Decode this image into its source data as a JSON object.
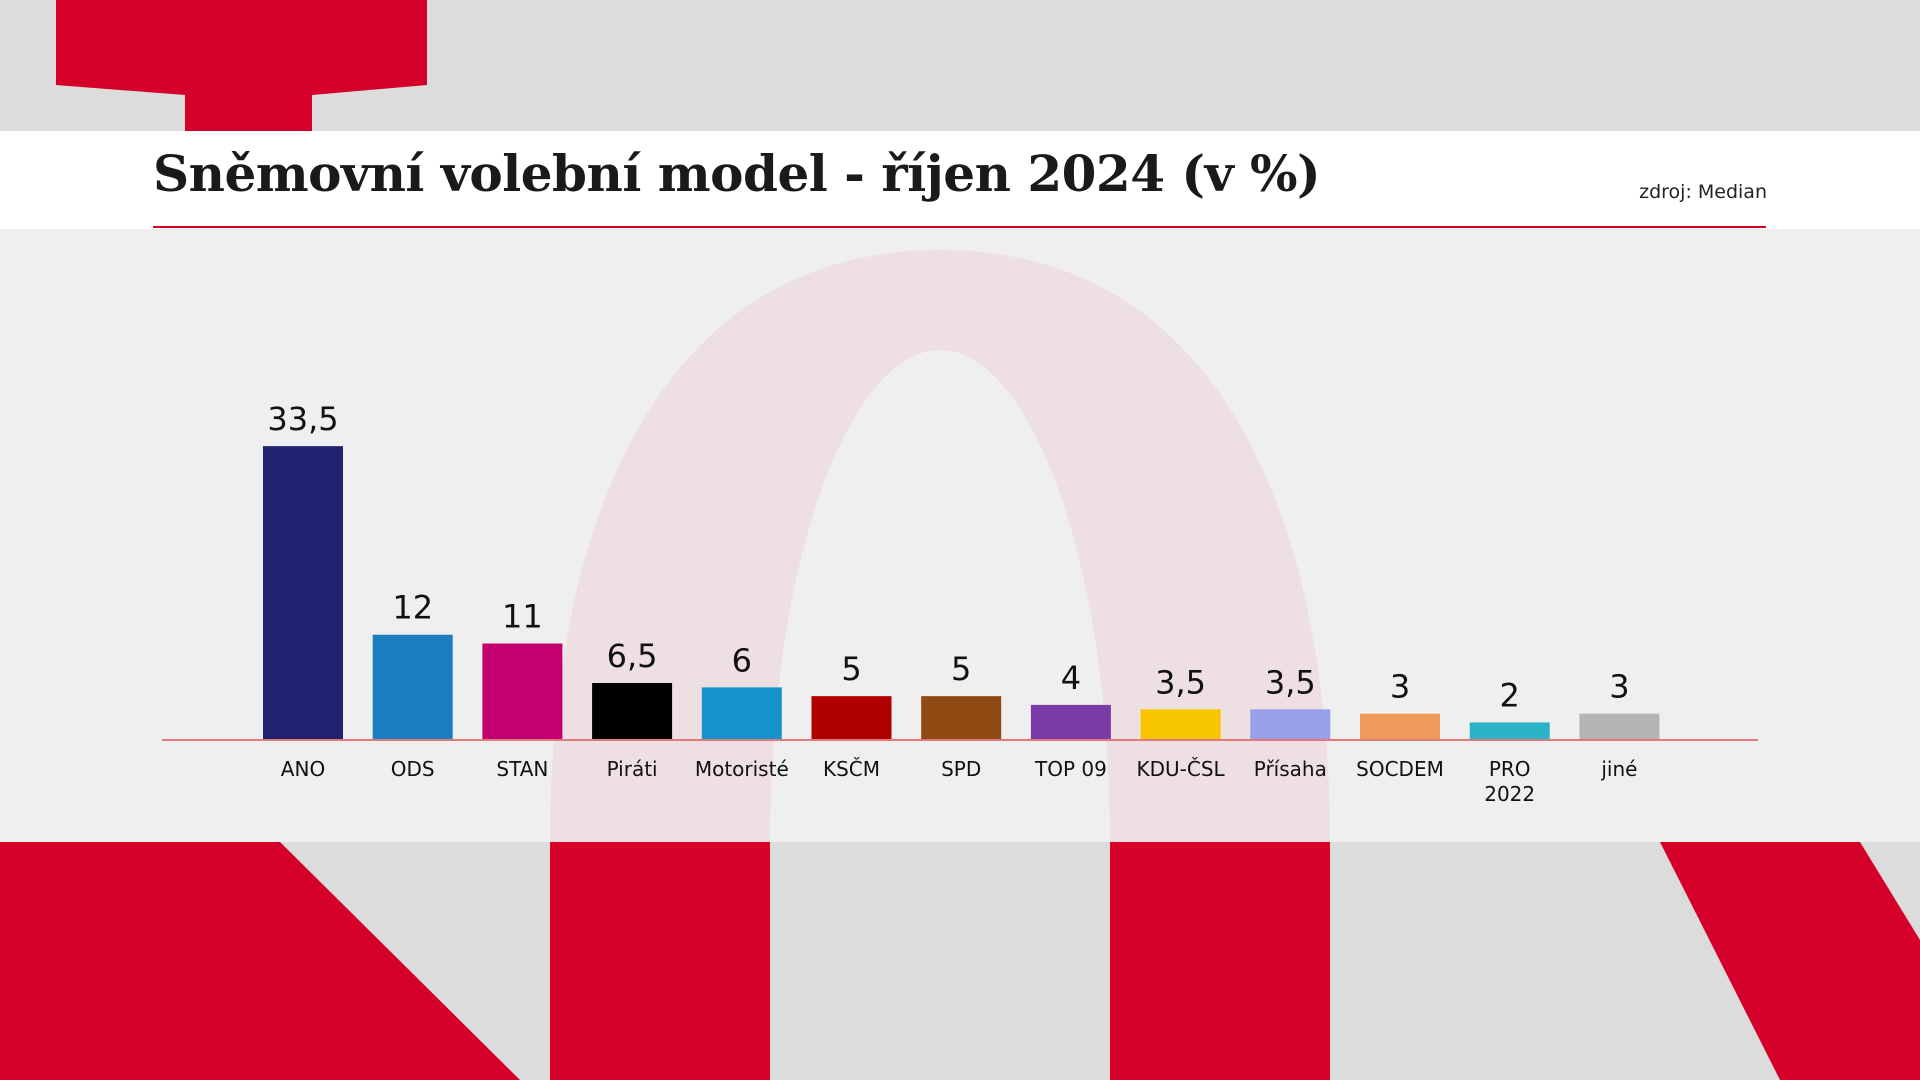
{
  "header": {
    "title": "Sněmovní volební model - říjen 2024 (v %)",
    "source": "zdroj: Median"
  },
  "colors": {
    "accent_red": "#d4002a",
    "baseline": "#e07a7a"
  },
  "chart_data": {
    "type": "bar",
    "title": "Sněmovní volební model - říjen 2024 (v %)",
    "xlabel": "",
    "ylabel": "",
    "ylim": [
      0,
      35
    ],
    "grid": false,
    "legend": "none",
    "categories": [
      "ANO",
      "ODS",
      "STAN",
      "Piráti",
      "Motoristé",
      "KSČM",
      "SPD",
      "TOP 09",
      "KDU-ČSL",
      "Přísaha",
      "SOCDEM",
      "PRO 2022",
      "jiné"
    ],
    "category_lines": [
      [
        "ANO"
      ],
      [
        "ODS"
      ],
      [
        "STAN"
      ],
      [
        "Piráti"
      ],
      [
        "Motoristé"
      ],
      [
        "KSČM"
      ],
      [
        "SPD"
      ],
      [
        "TOP 09"
      ],
      [
        "KDU-ČSL"
      ],
      [
        "Přísaha"
      ],
      [
        "SOCDEM"
      ],
      [
        "PRO",
        "2022"
      ],
      [
        "jiné"
      ]
    ],
    "values": [
      33.5,
      12,
      11,
      6.5,
      6,
      5,
      5,
      4,
      3.5,
      3.5,
      3,
      2,
      3
    ],
    "value_labels": [
      "33,5",
      "12",
      "11",
      "6,5",
      "6",
      "5",
      "5",
      "4",
      "3,5",
      "3,5",
      "3",
      "2",
      "3"
    ],
    "bar_colors": [
      "#1f236f",
      "#1a7ec1",
      "#c4006f",
      "#000000",
      "#1793cc",
      "#b00000",
      "#8f4a13",
      "#7b3ba6",
      "#f7c600",
      "#9aa0e8",
      "#ef9a5a",
      "#2bb3c8",
      "#b4b4b4"
    ]
  }
}
